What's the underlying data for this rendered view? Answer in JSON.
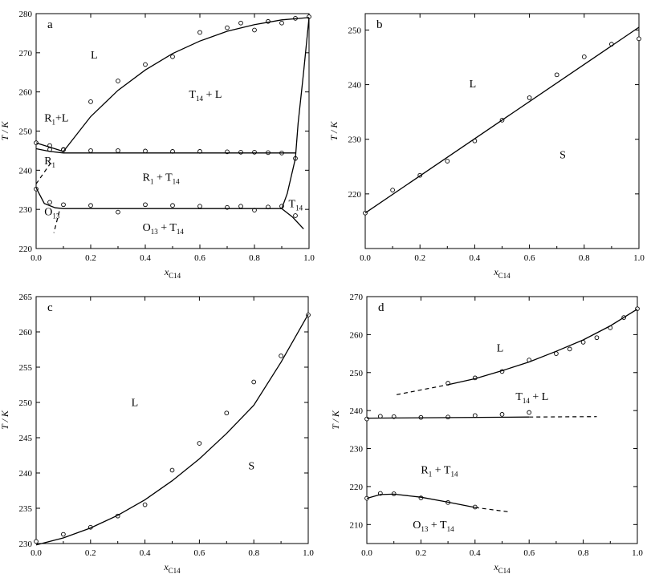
{
  "chart_data": [
    {
      "type": "scatter",
      "panel_label": "a",
      "xlabel": "x",
      "xlabel_sub": "C14",
      "ylabel": "T / K",
      "xlim": [
        0,
        1.0
      ],
      "ylim": [
        220,
        280
      ],
      "xticks": [
        0.0,
        0.2,
        0.4,
        0.6,
        0.8,
        1.0
      ],
      "xtick_labels": [
        "0.0",
        "0.2",
        "0.4",
        "0.6",
        "0.8",
        "1.0"
      ],
      "yticks": [
        220,
        230,
        240,
        250,
        260,
        270,
        280
      ],
      "ytick_labels": [
        "220",
        "230",
        "240",
        "250",
        "260",
        "270",
        "280"
      ],
      "series": [
        {
          "style": "points",
          "x": [
            0.0,
            0.05,
            0.1,
            0.2,
            0.3,
            0.4,
            0.5,
            0.6,
            0.7,
            0.75,
            0.8,
            0.85,
            0.9,
            0.95,
            1.0
          ],
          "y": [
            247.0,
            246.3,
            245.3,
            257.5,
            262.8,
            267.0,
            269.0,
            275.2,
            276.4,
            277.6,
            275.8,
            278.0,
            277.6,
            278.8,
            279.2
          ]
        },
        {
          "style": "points",
          "x": [
            0.05,
            0.1,
            0.2,
            0.3,
            0.4,
            0.5,
            0.6,
            0.7,
            0.75,
            0.8,
            0.85,
            0.9,
            0.95
          ],
          "y": [
            245.3,
            245.2,
            245.0,
            245.0,
            244.9,
            244.8,
            244.8,
            244.7,
            244.6,
            244.6,
            244.5,
            244.4,
            243.0
          ]
        },
        {
          "style": "points",
          "x": [
            0.0,
            0.05,
            0.1,
            0.2,
            0.3,
            0.4,
            0.5,
            0.6,
            0.7,
            0.75,
            0.8,
            0.85,
            0.9,
            0.95
          ],
          "y": [
            235.2,
            231.8,
            231.2,
            231.0,
            229.3,
            231.2,
            231.0,
            230.8,
            230.5,
            230.8,
            229.8,
            230.6,
            230.8,
            228.4
          ]
        },
        {
          "style": "line",
          "x": [
            0.1,
            0.2,
            0.3,
            0.4,
            0.5,
            0.6,
            0.7,
            0.8,
            0.9,
            1.0
          ],
          "y": [
            244.8,
            253.7,
            260.4,
            265.6,
            269.8,
            273.0,
            275.5,
            277.2,
            278.4,
            279.0
          ]
        },
        {
          "style": "line",
          "x": [
            0.0,
            0.1
          ],
          "y": [
            247.0,
            244.8
          ]
        },
        {
          "style": "line",
          "x": [
            0.0,
            0.05,
            0.1
          ],
          "y": [
            245.5,
            244.8,
            244.4
          ]
        },
        {
          "style": "line",
          "x": [
            0.1,
            0.95
          ],
          "y": [
            244.4,
            244.4
          ]
        },
        {
          "style": "line",
          "x": [
            0.95,
            0.96,
            0.98,
            1.0
          ],
          "y": [
            243.0,
            252.0,
            265.0,
            279.0
          ]
        },
        {
          "style": "line",
          "x": [
            0.0,
            0.03,
            0.07,
            0.1
          ],
          "y": [
            235.5,
            231.5,
            230.4,
            230.2
          ]
        },
        {
          "style": "line",
          "x": [
            0.1,
            0.9
          ],
          "y": [
            230.2,
            230.2
          ]
        },
        {
          "style": "line",
          "x": [
            0.9,
            0.92,
            0.95
          ],
          "y": [
            230.2,
            234.0,
            243.0
          ]
        },
        {
          "style": "line",
          "x": [
            0.9,
            0.94,
            0.98
          ],
          "y": [
            230.2,
            228.0,
            225.0
          ]
        },
        {
          "style": "dashed",
          "x": [
            0.0,
            0.06
          ],
          "y": [
            236.5,
            242.5
          ]
        },
        {
          "style": "dashed",
          "x": [
            0.085,
            0.065
          ],
          "y": [
            229.5,
            224.0
          ]
        }
      ],
      "annotations": [
        {
          "text": "L",
          "x": 0.2,
          "y": 268.5
        },
        {
          "text": "T",
          "sub": "14",
          "suffix": " + L",
          "x": 0.56,
          "y": 258.5
        },
        {
          "text": "R",
          "sub": "1",
          "suffix": "+L",
          "x": 0.03,
          "y": 252.5
        },
        {
          "text": "R",
          "sub": "1",
          "suffix": "",
          "x": 0.03,
          "y": 241.5
        },
        {
          "text": "R",
          "sub": "1",
          "suffix": " + T",
          "sub2": "14",
          "x": 0.39,
          "y": 237.3
        },
        {
          "text": "O",
          "sub": "13",
          "suffix": "",
          "x": 0.03,
          "y": 228.5
        },
        {
          "text": "O",
          "sub": "13",
          "suffix": " + T",
          "sub2": "14",
          "x": 0.39,
          "y": 224.5
        },
        {
          "text": "T",
          "sub": "14",
          "suffix": "",
          "x": 0.925,
          "y": 230.5
        }
      ]
    },
    {
      "type": "line",
      "panel_label": "b",
      "xlabel": "x",
      "xlabel_sub": "C14",
      "ylabel": "T / K",
      "xlim": [
        0,
        1.0
      ],
      "ylim": [
        210,
        253
      ],
      "xticks": [
        0.0,
        0.2,
        0.4,
        0.6,
        0.8,
        1.0
      ],
      "xtick_labels": [
        "0.0",
        "0.2",
        "0.4",
        "0.6",
        "0.8",
        "1.0"
      ],
      "yticks": [
        220,
        230,
        240,
        250
      ],
      "ytick_labels": [
        "220",
        "230",
        "240",
        "250"
      ],
      "series": [
        {
          "style": "points",
          "x": [
            0.0,
            0.1,
            0.2,
            0.3,
            0.4,
            0.5,
            0.6,
            0.7,
            0.8,
            0.9,
            1.0
          ],
          "y": [
            216.5,
            220.7,
            223.4,
            226.0,
            229.7,
            233.5,
            237.6,
            241.8,
            245.1,
            247.4,
            248.4
          ]
        },
        {
          "style": "line",
          "x": [
            0.0,
            1.0
          ],
          "y": [
            216.5,
            250.5
          ]
        }
      ],
      "annotations": [
        {
          "text": "L",
          "x": 0.38,
          "y": 239.5
        },
        {
          "text": "S",
          "x": 0.71,
          "y": 226.5
        }
      ]
    },
    {
      "type": "line",
      "panel_label": "c",
      "xlabel": "x",
      "xlabel_sub": "C14",
      "ylabel": "T / K",
      "xlim": [
        0,
        1.0
      ],
      "ylim": [
        230,
        265
      ],
      "xticks": [
        0.0,
        0.2,
        0.4,
        0.6,
        0.8,
        1.0
      ],
      "xtick_labels": [
        "0.0",
        "0.2",
        "0.4",
        "0.6",
        "0.8",
        "1.0"
      ],
      "yticks": [
        230,
        235,
        240,
        245,
        250,
        255,
        260,
        265
      ],
      "ytick_labels": [
        "230",
        "235",
        "240",
        "245",
        "250",
        "255",
        "260",
        "265"
      ],
      "series": [
        {
          "style": "points",
          "x": [
            0.0,
            0.1,
            0.2,
            0.3,
            0.4,
            0.5,
            0.6,
            0.7,
            0.8,
            0.9,
            1.0
          ],
          "y": [
            230.3,
            231.3,
            232.3,
            233.9,
            235.5,
            240.4,
            244.2,
            248.5,
            252.9,
            256.6,
            262.4
          ]
        },
        {
          "style": "line",
          "x": [
            0.0,
            0.1,
            0.2,
            0.3,
            0.4,
            0.5,
            0.6,
            0.7,
            0.8,
            0.9,
            1.0
          ],
          "y": [
            229.8,
            230.8,
            232.2,
            234.0,
            236.2,
            238.9,
            242.0,
            245.6,
            249.6,
            255.7,
            262.5
          ]
        }
      ],
      "annotations": [
        {
          "text": "L",
          "x": 0.35,
          "y": 249.5
        },
        {
          "text": "S",
          "x": 0.78,
          "y": 240.5
        }
      ]
    },
    {
      "type": "scatter",
      "panel_label": "d",
      "xlabel": "x",
      "xlabel_sub": "C14",
      "ylabel": "T / K",
      "xlim": [
        0,
        1.0
      ],
      "ylim": [
        205,
        270
      ],
      "xticks": [
        0.0,
        0.2,
        0.4,
        0.6,
        0.8,
        1.0
      ],
      "xtick_labels": [
        "0.0",
        "0.2",
        "0.4",
        "0.6",
        "0.8",
        "1.0"
      ],
      "yticks": [
        210,
        220,
        230,
        240,
        250,
        260,
        270
      ],
      "ytick_labels": [
        "210",
        "220",
        "230",
        "240",
        "250",
        "260",
        "270"
      ],
      "series": [
        {
          "style": "points",
          "x": [
            0.3,
            0.4,
            0.5,
            0.6,
            0.7,
            0.75,
            0.8,
            0.85,
            0.9,
            0.95,
            1.0
          ],
          "y": [
            247.2,
            248.6,
            250.3,
            253.3,
            255.0,
            256.2,
            258.0,
            259.2,
            261.8,
            264.5,
            266.8
          ]
        },
        {
          "style": "points",
          "x": [
            0.0,
            0.05,
            0.1,
            0.2,
            0.3,
            0.4,
            0.5,
            0.6
          ],
          "y": [
            237.8,
            238.5,
            238.4,
            238.2,
            238.3,
            238.7,
            239.0,
            239.5
          ]
        },
        {
          "style": "points",
          "x": [
            0.0,
            0.05,
            0.1,
            0.2,
            0.3,
            0.4
          ],
          "y": [
            216.9,
            218.2,
            218.1,
            217.0,
            215.8,
            214.6
          ]
        },
        {
          "style": "line",
          "x": [
            0.3,
            0.4,
            0.5,
            0.6,
            0.7,
            0.8,
            0.9,
            1.0
          ],
          "y": [
            246.8,
            248.4,
            250.5,
            252.8,
            255.6,
            258.6,
            262.3,
            266.7
          ]
        },
        {
          "style": "dashed",
          "x": [
            0.11,
            0.3
          ],
          "y": [
            244.2,
            246.8
          ]
        },
        {
          "style": "line",
          "x": [
            0.0,
            0.6
          ],
          "y": [
            238.0,
            238.3
          ]
        },
        {
          "style": "dashed",
          "x": [
            0.6,
            0.85
          ],
          "y": [
            238.3,
            238.4
          ]
        },
        {
          "style": "line",
          "x": [
            0.0,
            0.05,
            0.1,
            0.2,
            0.3,
            0.4
          ],
          "y": [
            216.9,
            217.9,
            218.0,
            217.2,
            215.9,
            214.5
          ]
        },
        {
          "style": "dashed",
          "x": [
            0.4,
            0.53
          ],
          "y": [
            214.5,
            213.3
          ]
        }
      ],
      "annotations": [
        {
          "text": "L",
          "x": 0.48,
          "y": 255.5
        },
        {
          "text": "T",
          "sub": "14",
          "suffix": " + L",
          "x": 0.55,
          "y": 242.8
        },
        {
          "text": "R",
          "sub": "1",
          "suffix": " + T",
          "sub2": "14",
          "x": 0.2,
          "y": 223.5
        },
        {
          "text": "O",
          "sub": "13",
          "suffix": " + T",
          "sub2": "14",
          "x": 0.17,
          "y": 209.0
        }
      ]
    }
  ]
}
